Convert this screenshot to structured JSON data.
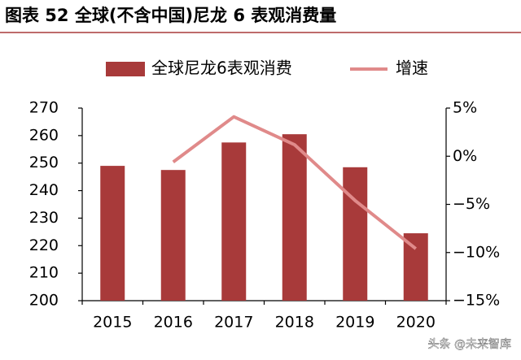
{
  "chart_data": {
    "type": "bar",
    "title": "图表 52  全球(不含中国)尼龙 6 表观消费量",
    "categories": [
      "2015",
      "2016",
      "2017",
      "2018",
      "2019",
      "2020"
    ],
    "series": [
      {
        "name": "全球尼龙6表观消费",
        "type": "bar",
        "color": "#a83a3a",
        "values": [
          249,
          247.5,
          257.5,
          260.5,
          248.5,
          224.5
        ]
      },
      {
        "name": "增速",
        "type": "line",
        "axis": "y2",
        "color": "#e08a8a",
        "values": [
          null,
          -0.6,
          4.1,
          1.2,
          -4.6,
          -9.6
        ]
      }
    ],
    "ylim": [
      200,
      270
    ],
    "yticks": [
      200,
      210,
      220,
      230,
      240,
      250,
      260,
      270
    ],
    "y2lim": [
      -15,
      5
    ],
    "y2ticks": [
      {
        "value": -15,
        "label": "−15%"
      },
      {
        "value": -10,
        "label": "−10%"
      },
      {
        "value": -5,
        "label": "−5%"
      },
      {
        "value": 0,
        "label": "0%"
      },
      {
        "value": 5,
        "label": "5%"
      }
    ],
    "watermark": "头条 @未来智库"
  }
}
